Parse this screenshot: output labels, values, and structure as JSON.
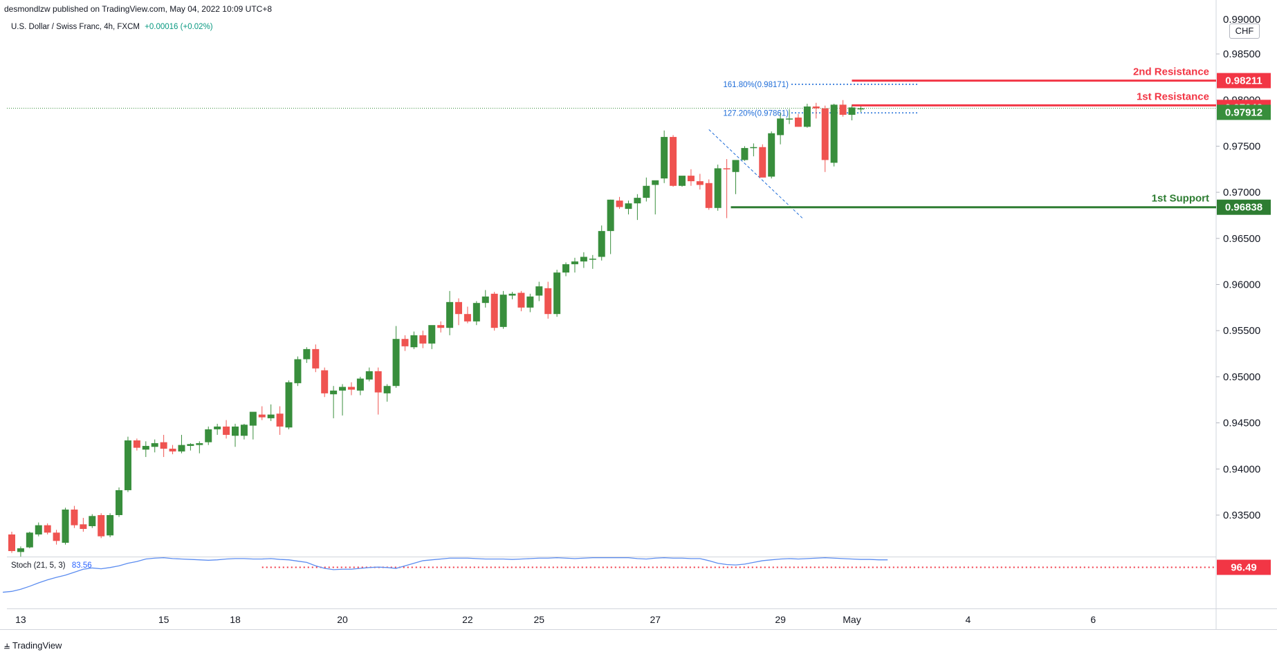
{
  "header": {
    "published": "desmondlzw published on TradingView.com, May 04, 2022 10:09 UTC+8",
    "symbol": "U.S. Dollar / Swiss Franc, 4h, FXCM",
    "change": "+0.00016 (+0.02%)"
  },
  "currency": "CHF",
  "brand": {
    "name": "TradingView",
    "logo": "tradingview-logo"
  },
  "chart_data": {
    "type": "candlestick",
    "price_axis": {
      "ylim": [
        0.9305,
        0.9895
      ],
      "ticks": [
        "0.98500",
        "0.98000",
        "0.97500",
        "0.97000",
        "0.96500",
        "0.96000",
        "0.95500",
        "0.95000",
        "0.94500",
        "0.94000",
        "0.93500"
      ],
      "top_tick": "0.99000"
    },
    "time_axis": {
      "labels": [
        {
          "text": "13",
          "bar": 1
        },
        {
          "text": "15",
          "bar": 17
        },
        {
          "text": "18",
          "bar": 25
        },
        {
          "text": "20",
          "bar": 37
        },
        {
          "text": "22",
          "bar": 51
        },
        {
          "text": "25",
          "bar": 59
        },
        {
          "text": "27",
          "bar": 72
        },
        {
          "text": "29",
          "bar": 86
        },
        {
          "text": "May",
          "bar": 94
        },
        {
          "text": "4",
          "bar": 107
        },
        {
          "text": "6",
          "bar": 121
        }
      ]
    },
    "candles": [
      [
        0.9329,
        0.9332,
        0.9309,
        0.9311
      ],
      [
        0.931,
        0.9316,
        0.9305,
        0.9314
      ],
      [
        0.9315,
        0.9332,
        0.9314,
        0.9331
      ],
      [
        0.9329,
        0.9342,
        0.9327,
        0.9339
      ],
      [
        0.9339,
        0.9341,
        0.9329,
        0.9331
      ],
      [
        0.9331,
        0.9334,
        0.9318,
        0.9322
      ],
      [
        0.932,
        0.9358,
        0.9318,
        0.9356
      ],
      [
        0.9356,
        0.936,
        0.9336,
        0.9339
      ],
      [
        0.934,
        0.9347,
        0.9332,
        0.9335
      ],
      [
        0.9338,
        0.9351,
        0.9336,
        0.9349
      ],
      [
        0.935,
        0.9352,
        0.9325,
        0.9327
      ],
      [
        0.9328,
        0.9352,
        0.9326,
        0.935
      ],
      [
        0.935,
        0.938,
        0.9348,
        0.9377
      ],
      [
        0.9377,
        0.9435,
        0.9375,
        0.9431
      ],
      [
        0.9431,
        0.9433,
        0.942,
        0.9423
      ],
      [
        0.9421,
        0.943,
        0.9413,
        0.9425
      ],
      [
        0.9424,
        0.9432,
        0.9418,
        0.9428
      ],
      [
        0.9429,
        0.9437,
        0.9413,
        0.9422
      ],
      [
        0.9422,
        0.9426,
        0.9416,
        0.9419
      ],
      [
        0.9419,
        0.9437,
        0.9417,
        0.9426
      ],
      [
        0.9425,
        0.9428,
        0.942,
        0.9427
      ],
      [
        0.9426,
        0.943,
        0.9417,
        0.9428
      ],
      [
        0.9429,
        0.9446,
        0.9426,
        0.9443
      ],
      [
        0.9443,
        0.9449,
        0.9437,
        0.9446
      ],
      [
        0.9446,
        0.9453,
        0.9433,
        0.9437
      ],
      [
        0.9436,
        0.9449,
        0.9424,
        0.9446
      ],
      [
        0.9436,
        0.9449,
        0.9432,
        0.9448
      ],
      [
        0.9447,
        0.9461,
        0.9432,
        0.9462
      ],
      [
        0.9459,
        0.9468,
        0.9453,
        0.9456
      ],
      [
        0.9455,
        0.947,
        0.9452,
        0.9459
      ],
      [
        0.946,
        0.9468,
        0.9437,
        0.9446
      ],
      [
        0.9445,
        0.9496,
        0.9443,
        0.9494
      ],
      [
        0.9493,
        0.9522,
        0.949,
        0.9519
      ],
      [
        0.9519,
        0.9532,
        0.9515,
        0.953
      ],
      [
        0.953,
        0.9535,
        0.9505,
        0.9509
      ],
      [
        0.9507,
        0.951,
        0.9478,
        0.9482
      ],
      [
        0.9481,
        0.949,
        0.9455,
        0.9485
      ],
      [
        0.9485,
        0.9492,
        0.9458,
        0.9489
      ],
      [
        0.9489,
        0.9494,
        0.948,
        0.9486
      ],
      [
        0.9485,
        0.95,
        0.948,
        0.9498
      ],
      [
        0.9497,
        0.951,
        0.9495,
        0.9506
      ],
      [
        0.9506,
        0.951,
        0.9459,
        0.9483
      ],
      [
        0.9482,
        0.9492,
        0.9473,
        0.949
      ],
      [
        0.949,
        0.9555,
        0.9488,
        0.9541
      ],
      [
        0.9541,
        0.9545,
        0.9528,
        0.9533
      ],
      [
        0.9532,
        0.9549,
        0.953,
        0.9545
      ],
      [
        0.9545,
        0.955,
        0.9531,
        0.9536
      ],
      [
        0.9536,
        0.9555,
        0.953,
        0.9556
      ],
      [
        0.9556,
        0.956,
        0.9548,
        0.9553
      ],
      [
        0.9553,
        0.9593,
        0.9545,
        0.9581
      ],
      [
        0.9581,
        0.9585,
        0.9556,
        0.9568
      ],
      [
        0.9568,
        0.9576,
        0.9558,
        0.956
      ],
      [
        0.956,
        0.9582,
        0.9556,
        0.958
      ],
      [
        0.958,
        0.9594,
        0.9575,
        0.9587
      ],
      [
        0.959,
        0.9592,
        0.955,
        0.9553
      ],
      [
        0.9554,
        0.9593,
        0.9552,
        0.9589
      ],
      [
        0.9588,
        0.9592,
        0.9584,
        0.959
      ],
      [
        0.9591,
        0.9593,
        0.9571,
        0.9575
      ],
      [
        0.9575,
        0.959,
        0.957,
        0.9587
      ],
      [
        0.9588,
        0.9603,
        0.9582,
        0.9598
      ],
      [
        0.9596,
        0.9603,
        0.9563,
        0.9568
      ],
      [
        0.9568,
        0.9616,
        0.9565,
        0.9613
      ],
      [
        0.9613,
        0.9624,
        0.9609,
        0.9622
      ],
      [
        0.9622,
        0.9629,
        0.9613,
        0.9625
      ],
      [
        0.9625,
        0.9635,
        0.9618,
        0.963
      ],
      [
        0.9627,
        0.9632,
        0.9617,
        0.9628
      ],
      [
        0.963,
        0.9664,
        0.9626,
        0.9658
      ],
      [
        0.9658,
        0.9692,
        0.9633,
        0.9692
      ],
      [
        0.9691,
        0.9695,
        0.9682,
        0.9684
      ],
      [
        0.9682,
        0.9691,
        0.9676,
        0.9688
      ],
      [
        0.9688,
        0.9698,
        0.967,
        0.9694
      ],
      [
        0.9694,
        0.9716,
        0.969,
        0.9707
      ],
      [
        0.9708,
        0.9712,
        0.9676,
        0.9713
      ],
      [
        0.9715,
        0.9767,
        0.971,
        0.976
      ],
      [
        0.976,
        0.9762,
        0.9706,
        0.9707
      ],
      [
        0.9707,
        0.9715,
        0.9706,
        0.9718
      ],
      [
        0.9718,
        0.9725,
        0.9707,
        0.9712
      ],
      [
        0.9712,
        0.972,
        0.9703,
        0.9708
      ],
      [
        0.971,
        0.9714,
        0.9681,
        0.9683
      ],
      [
        0.9683,
        0.973,
        0.968,
        0.9726
      ],
      [
        0.9726,
        0.9736,
        0.9672,
        0.9725
      ],
      [
        0.9722,
        0.9732,
        0.9698,
        0.9735
      ],
      [
        0.9735,
        0.975,
        0.9734,
        0.9748
      ],
      [
        0.9749,
        0.9753,
        0.9739,
        0.9749
      ],
      [
        0.9749,
        0.9752,
        0.9717,
        0.9716
      ],
      [
        0.9717,
        0.9766,
        0.9715,
        0.9764
      ],
      [
        0.9762,
        0.9786,
        0.9752,
        0.978
      ],
      [
        0.9779,
        0.979,
        0.9774,
        0.978
      ],
      [
        0.9781,
        0.9785,
        0.9771,
        0.9771
      ],
      [
        0.9771,
        0.9796,
        0.977,
        0.9793
      ],
      [
        0.9793,
        0.9797,
        0.978,
        0.9791
      ],
      [
        0.9791,
        0.9794,
        0.9722,
        0.9735
      ],
      [
        0.9732,
        0.9796,
        0.9728,
        0.9795
      ],
      [
        0.9795,
        0.98,
        0.9782,
        0.9784
      ],
      [
        0.9784,
        0.9795,
        0.9778,
        0.9792
      ],
      [
        0.9791,
        0.9794,
        0.9787,
        0.9791
      ]
    ],
    "stoch": {
      "label": "Stoch (21, 5, 3)",
      "value": "83.56",
      "level": "96.49",
      "ylim": [
        0,
        120
      ]
    },
    "stoch_values": [
      38,
      40,
      45,
      52,
      60,
      67,
      73,
      78,
      85,
      92,
      95,
      93,
      96,
      100,
      106,
      110,
      116,
      118,
      119,
      117,
      116,
      115,
      114,
      113,
      114,
      116,
      117,
      117,
      116,
      116,
      117,
      115,
      114,
      111,
      108,
      100,
      94,
      91,
      92,
      92,
      94,
      96,
      97,
      96,
      94,
      100,
      106,
      112,
      114,
      116,
      118,
      118,
      118,
      117,
      116,
      116,
      116,
      115,
      116,
      117,
      118,
      118,
      119,
      118,
      117,
      118,
      119,
      119,
      119,
      119,
      119,
      117,
      116,
      118,
      119,
      118,
      118,
      117,
      117,
      112,
      106,
      103,
      102,
      104,
      108,
      112,
      114,
      116,
      117,
      116,
      117,
      118,
      119,
      118,
      117,
      116,
      115,
      115,
      114,
      114
    ]
  },
  "levels": {
    "r2": {
      "label": "2nd Resistance",
      "price": "0.98211",
      "value": 0.98211
    },
    "r1": {
      "label": "1st Resistance",
      "price": "0.97943",
      "value": 0.97943
    },
    "s1": {
      "label": "1st Support",
      "price": "0.96838",
      "value": 0.96838
    },
    "last": {
      "price": "0.97912",
      "value": 0.97912
    }
  },
  "fib": {
    "f1618": {
      "label": "161.80%(0.98171)",
      "value": 0.98171
    },
    "f1272": {
      "label": "127.20%(0.97861)",
      "value": 0.97861
    }
  },
  "colors": {
    "up": "#388e3c",
    "down": "#ef5350",
    "resistance": "#f23645",
    "support": "#2e7d32",
    "fib": "#1e6cd8",
    "stoch": "#5b8cf0",
    "grid": "#e0e3eb",
    "axis_text": "#131722"
  }
}
